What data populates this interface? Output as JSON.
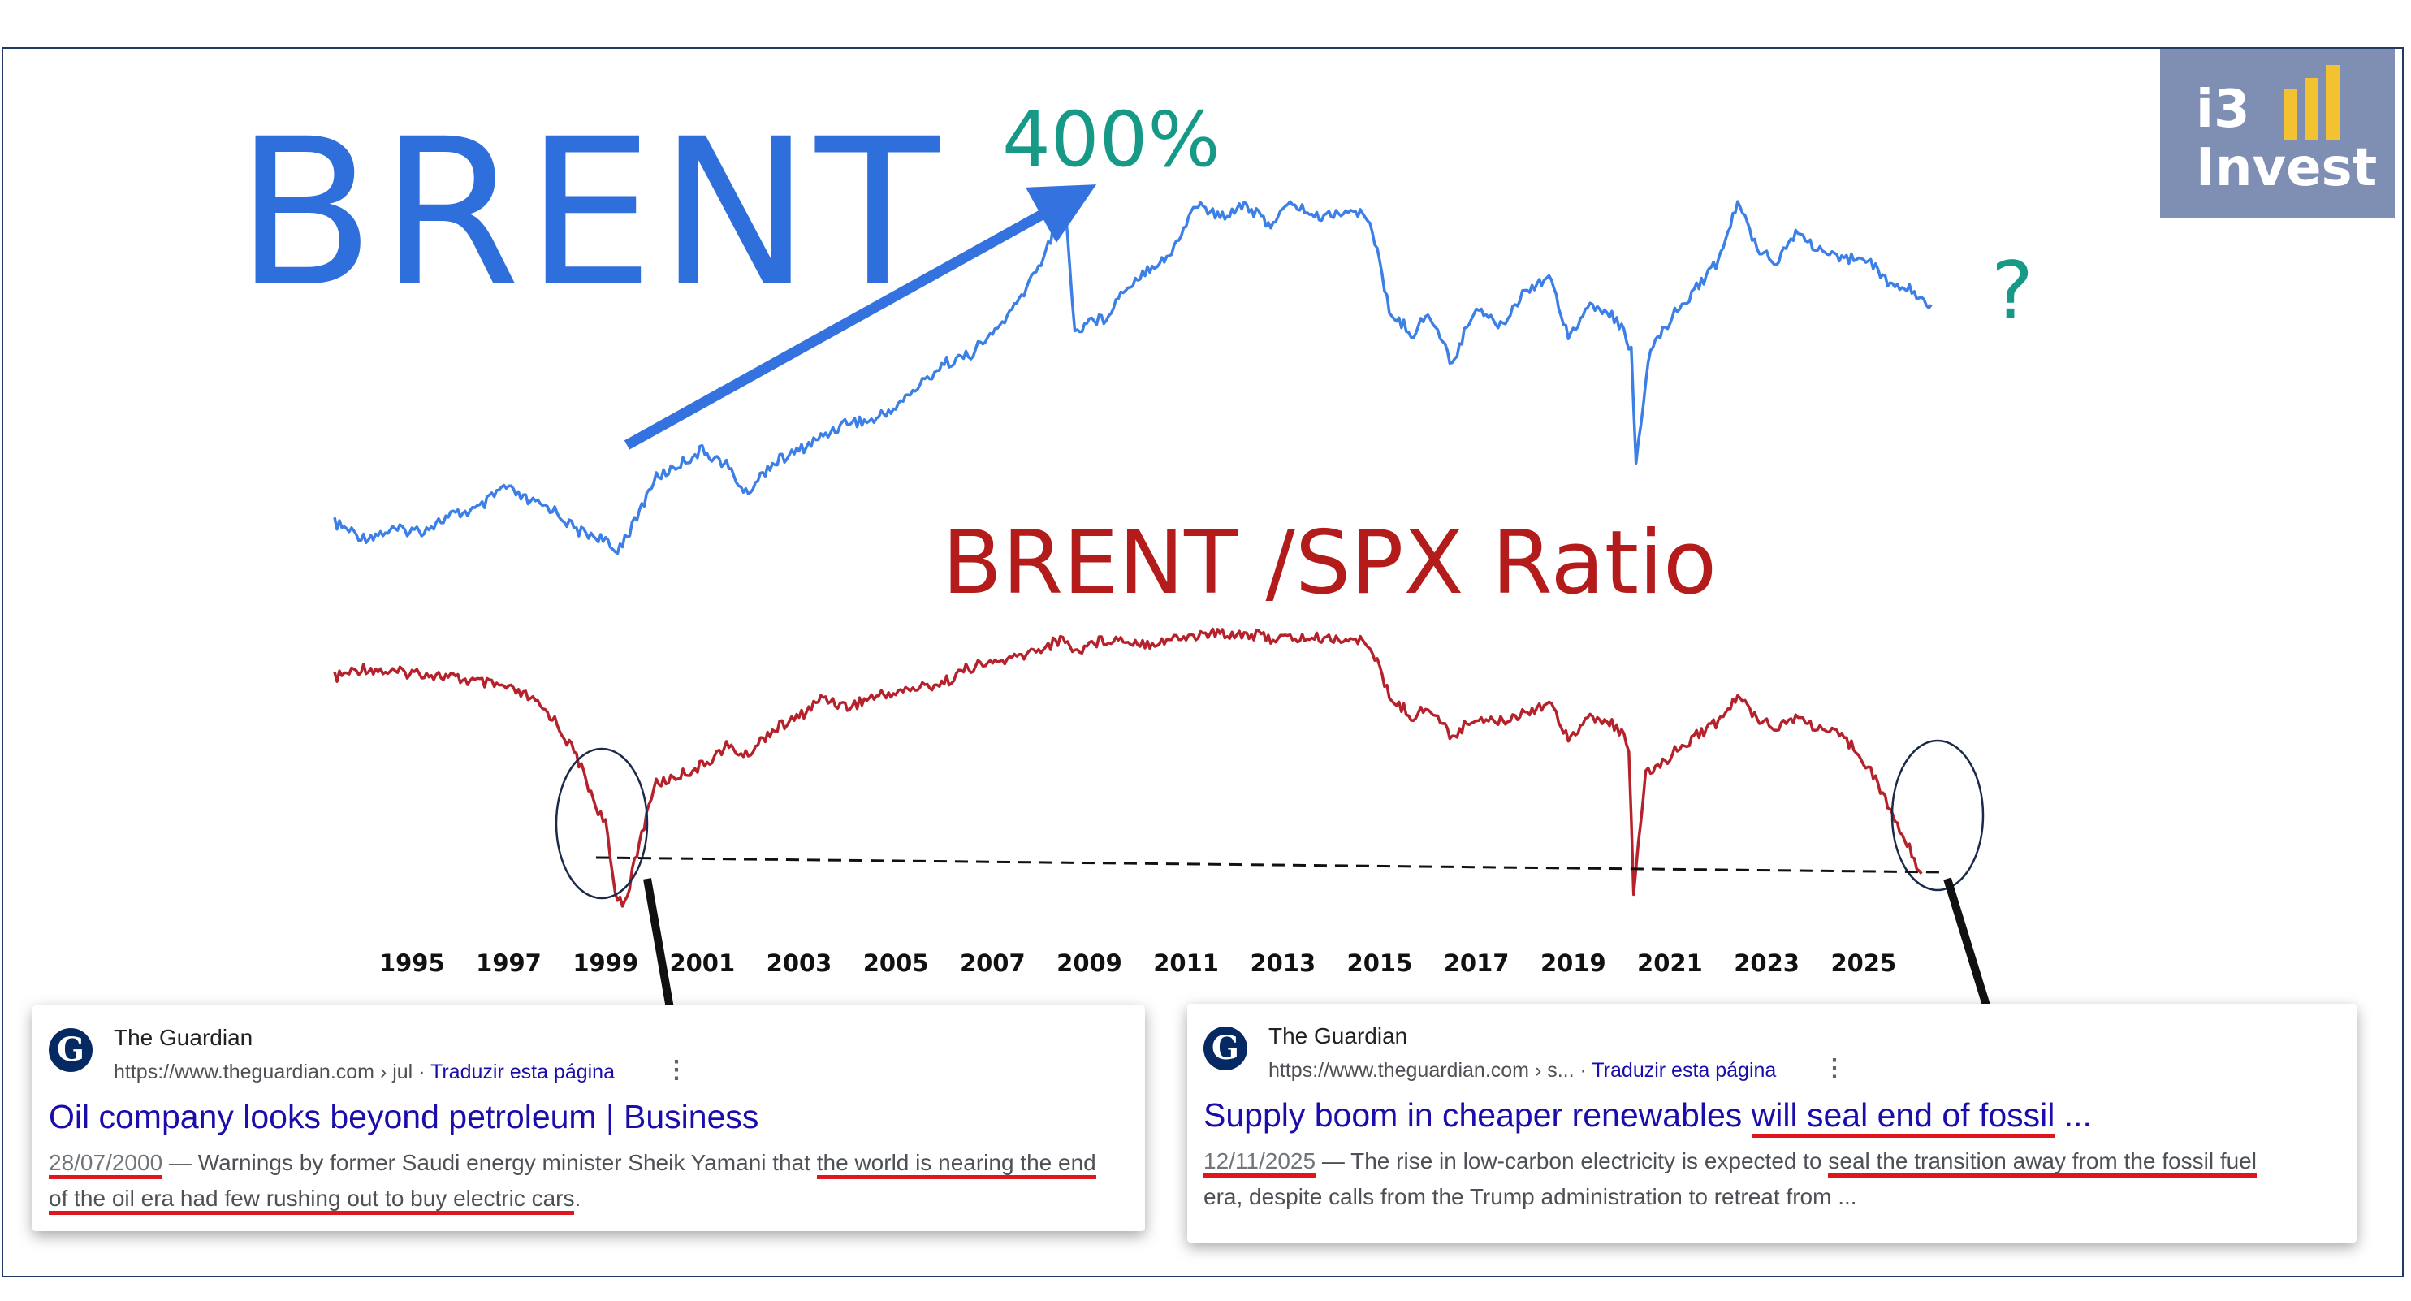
{
  "logo": {
    "line1": "i3",
    "line2": "Invest",
    "bar_color": "#f2c230",
    "bg_color": "#7f8fb4"
  },
  "annotations": {
    "brent_label": "BRENT",
    "peak_label": "400%",
    "future_label": "?",
    "ratio_label": "BRENT /SPX Ratio"
  },
  "colors": {
    "brent": "#3c7fe6",
    "ratio": "#b5222c",
    "arrow_blue": "#3472e0",
    "teal": "#169a87"
  },
  "chart_data": [
    {
      "type": "line",
      "title": "BRENT",
      "xlabel": "",
      "ylabel": "",
      "x_ticks": [
        "1995",
        "1997",
        "1999",
        "2001",
        "2003",
        "2005",
        "2007",
        "2009",
        "2011",
        "2013",
        "2015",
        "2017",
        "2019",
        "2021",
        "2023",
        "2025"
      ],
      "xlim": [
        1993.4,
        2026.8
      ],
      "y_scale": "relative (unlabeled)",
      "series": [
        {
          "x": [
            1993.4,
            1994.0,
            1994.6,
            1995.2,
            1995.8,
            1996.4,
            1996.9,
            1997.4,
            1997.9,
            1998.4,
            1998.9,
            1999.2,
            1999.6,
            2000.0,
            2000.5,
            2001.0,
            2001.5,
            2001.9,
            2002.4,
            2003.0,
            2003.5,
            2004.0,
            2004.5,
            2005.0,
            2005.5,
            2006.0,
            2006.5,
            2007.0,
            2007.5,
            2008.0,
            2008.5,
            2008.7,
            2009.0,
            2009.3,
            2009.7,
            2010.2,
            2010.7,
            2011.2,
            2011.7,
            2012.2,
            2012.7,
            2013.2,
            2013.7,
            2014.3,
            2014.8,
            2015.2,
            2015.7,
            2016.0,
            2016.5,
            2017.0,
            2017.5,
            2018.0,
            2018.5,
            2018.9,
            2019.4,
            2019.9,
            2020.2,
            2020.3,
            2020.6,
            2021.0,
            2021.5,
            2022.0,
            2022.4,
            2022.8,
            2023.2,
            2023.6,
            2024.0,
            2024.5,
            2025.0,
            2025.5,
            2026.0,
            2026.4
          ],
          "y": [
            14,
            12,
            13,
            13,
            15,
            16,
            19,
            17,
            16,
            13,
            12,
            10,
            14,
            20,
            22,
            24,
            22,
            18,
            22,
            24,
            26,
            28,
            28,
            30,
            33,
            36,
            37,
            40,
            44,
            50,
            58,
            40,
            42,
            42,
            46,
            49,
            51,
            58,
            56,
            58,
            55,
            58,
            56,
            57,
            56,
            43,
            40,
            43,
            36,
            44,
            41,
            46,
            48,
            40,
            44,
            42,
            38,
            22,
            38,
            42,
            46,
            50,
            58,
            52,
            50,
            54,
            52,
            50,
            51,
            47,
            46,
            44
          ]
        }
      ]
    },
    {
      "type": "line",
      "title": "BRENT /SPX Ratio",
      "xlabel": "",
      "ylabel": "",
      "x_ticks": [
        "1995",
        "1997",
        "1999",
        "2001",
        "2003",
        "2005",
        "2007",
        "2009",
        "2011",
        "2013",
        "2015",
        "2017",
        "2019",
        "2021",
        "2023",
        "2025"
      ],
      "xlim": [
        1993.4,
        2026.8
      ],
      "y_scale": "relative (unlabeled)",
      "series": [
        {
          "x": [
            1993.4,
            1994.0,
            1994.6,
            1995.2,
            1995.8,
            1996.4,
            1996.9,
            1997.4,
            1997.9,
            1998.4,
            1998.8,
            1999.0,
            1999.2,
            1999.4,
            1999.7,
            2000.0,
            2000.5,
            2001.0,
            2001.5,
            2001.9,
            2002.4,
            2003.0,
            2003.5,
            2004.0,
            2004.5,
            2005.0,
            2005.5,
            2006.0,
            2006.5,
            2007.0,
            2007.5,
            2008.0,
            2008.5,
            2008.7,
            2009.0,
            2009.5,
            2010.2,
            2010.8,
            2011.5,
            2012.2,
            2012.8,
            2013.5,
            2014.2,
            2014.8,
            2015.2,
            2015.7,
            2016.0,
            2016.5,
            2017.0,
            2017.5,
            2018.0,
            2018.5,
            2018.9,
            2019.4,
            2019.9,
            2020.15,
            2020.25,
            2020.5,
            2021.0,
            2021.5,
            2022.0,
            2022.4,
            2022.8,
            2023.2,
            2023.6,
            2024.0,
            2024.5,
            2024.8,
            2025.1,
            2025.4,
            2025.8,
            2026.2
          ],
          "y": [
            90,
            92,
            91,
            91,
            90,
            89,
            88,
            86,
            82,
            74,
            64,
            60,
            46,
            44,
            56,
            68,
            70,
            72,
            76,
            74,
            79,
            82,
            86,
            84,
            86,
            87,
            88,
            89,
            92,
            93,
            94,
            96,
            98,
            95,
            97,
            98,
            97,
            98,
            99,
            99,
            98,
            98,
            98,
            97,
            86,
            82,
            84,
            78,
            82,
            81,
            83,
            85,
            78,
            82,
            80,
            76,
            46,
            70,
            74,
            78,
            81,
            86,
            82,
            80,
            82,
            80,
            78,
            76,
            72,
            66,
            58,
            50
          ]
        }
      ]
    }
  ],
  "cards": [
    {
      "source": "The Guardian",
      "url": "https://www.theguardian.com › jul",
      "translate": "Traduzir esta página",
      "menu": "⋮",
      "favicon": "G",
      "headline": "Oil company looks beyond petroleum | Business",
      "date": "28/07/2000",
      "dash": " — ",
      "snippet_a": "Warnings by former Saudi energy minister Sheik Yamani that ",
      "snippet_b": "the world is nearing the end",
      "snippet_c": "of the oil",
      "snippet_d": " era had few rushing out to buy electric cars",
      "snippet_e": "."
    },
    {
      "source": "The Guardian",
      "url": "https://www.theguardian.com › s...",
      "translate": "Traduzir esta página",
      "menu": "⋮",
      "favicon": "G",
      "headline_a": "Supply boom in cheaper renewables ",
      "headline_b": "will seal end of fossil",
      "headline_c": " ...",
      "date": "12/11/2025",
      "dash": " — ",
      "snippet_a": "The rise in low-carbon electricity is expected to ",
      "snippet_b": "seal the transition away from the fossil fuel",
      "snippet_c": "era, despite calls from the Trump administration to retreat from ..."
    }
  ]
}
